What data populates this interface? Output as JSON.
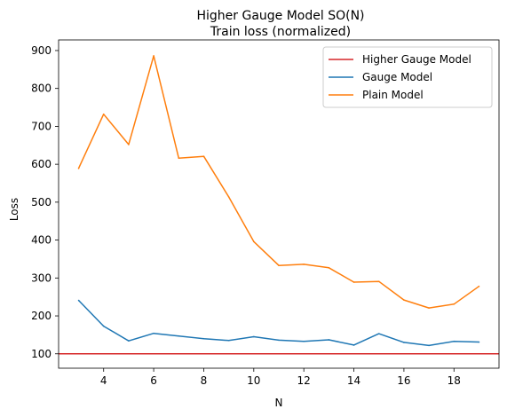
{
  "chart_data": {
    "type": "line",
    "title": "Higher Gauge Model SO(N)",
    "subtitle": "Train loss (normalized)",
    "xlabel": "N",
    "ylabel": "Loss",
    "xlim": [
      2.2,
      19.8
    ],
    "ylim": [
      62,
      928
    ],
    "xticks": [
      4,
      6,
      8,
      10,
      12,
      14,
      16,
      18
    ],
    "yticks": [
      100,
      200,
      300,
      400,
      500,
      600,
      700,
      800,
      900
    ],
    "grid": false,
    "legend_position": "top-right",
    "hlines": [
      {
        "name": "Higher Gauge Model",
        "y": 100,
        "color": "#d62728"
      }
    ],
    "series": [
      {
        "name": "Gauge Model",
        "color": "#1f77b4",
        "x": [
          3,
          4,
          5,
          6,
          7,
          8,
          9,
          10,
          11,
          12,
          13,
          14,
          15,
          16,
          17,
          18,
          19
        ],
        "values": [
          241,
          173,
          134,
          154,
          147,
          140,
          135,
          145,
          136,
          133,
          137,
          123,
          153,
          130,
          122,
          133,
          131
        ]
      },
      {
        "name": "Plain Model",
        "color": "#ff7f0e",
        "x": [
          3,
          4,
          5,
          6,
          7,
          8,
          9,
          10,
          11,
          12,
          13,
          14,
          15,
          16,
          17,
          18,
          19
        ],
        "values": [
          589,
          732,
          652,
          886,
          616,
          621,
          514,
          396,
          333,
          336,
          327,
          289,
          291,
          242,
          221,
          231,
          278
        ]
      }
    ]
  }
}
